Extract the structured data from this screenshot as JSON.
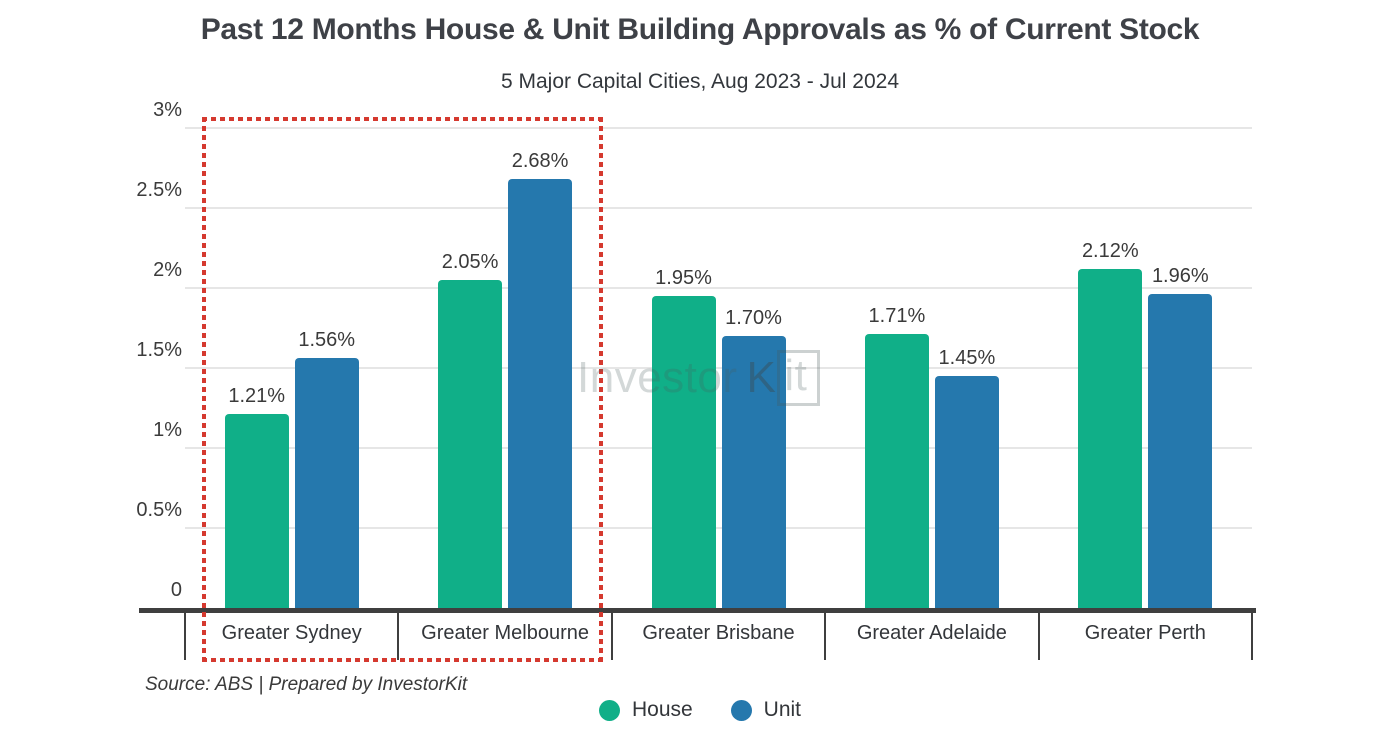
{
  "chart_data": {
    "type": "bar",
    "title": "Past 12 Months House & Unit Building Approvals as % of Current Stock",
    "subtitle": "5 Major Capital Cities, Aug 2023 - Jul 2024",
    "categories": [
      "Greater Sydney",
      "Greater Melbourne",
      "Greater Brisbane",
      "Greater Adelaide",
      "Greater Perth"
    ],
    "series": [
      {
        "name": "House",
        "color": "#10af88",
        "values": [
          1.21,
          2.05,
          1.95,
          1.71,
          2.12
        ],
        "labels": [
          "1.21%",
          "2.05%",
          "1.95%",
          "1.71%",
          "2.12%"
        ]
      },
      {
        "name": "Unit",
        "color": "#2578ad",
        "values": [
          1.56,
          2.68,
          1.7,
          1.45,
          1.96
        ],
        "labels": [
          "1.56%",
          "2.68%",
          "1.70%",
          "1.45%",
          "1.96%"
        ]
      }
    ],
    "ylim": [
      0,
      3
    ],
    "yticks": [
      {
        "value": 0,
        "label": "0"
      },
      {
        "value": 0.5,
        "label": "0.5%"
      },
      {
        "value": 1,
        "label": "1%"
      },
      {
        "value": 1.5,
        "label": "1.5%"
      },
      {
        "value": 2,
        "label": "2%"
      },
      {
        "value": 2.5,
        "label": "2.5%"
      },
      {
        "value": 3,
        "label": "3%"
      }
    ],
    "grid": true,
    "legend_position": "bottom",
    "annotation_highlight": {
      "categories": [
        "Greater Sydney",
        "Greater Melbourne"
      ],
      "category_indices": [
        0,
        1
      ],
      "color": "#d5392f",
      "style": "dotted-rectangle"
    }
  },
  "footer": {
    "source": "Source: ABS | Prepared by InvestorKit"
  },
  "watermark": {
    "text_left": "Investor",
    "text_k": "K",
    "text_boxed": "it"
  },
  "colors": {
    "grid": "#e6e6e6",
    "axis": "#3f3f3f",
    "tick_text": "#3b3b3b",
    "value_text": "#3a3a3a",
    "category_text": "#33363a",
    "highlight": "#d5392f"
  }
}
